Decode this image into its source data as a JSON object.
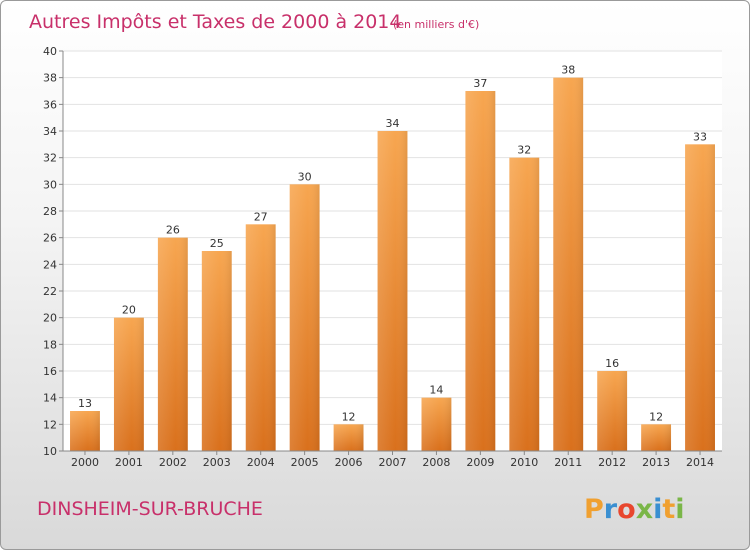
{
  "chart_data": {
    "type": "bar",
    "title": "Autres Impôts et Taxes de 2000 à 2014",
    "subtitle": "(en milliers d'€)",
    "categories": [
      "2000",
      "2001",
      "2002",
      "2003",
      "2004",
      "2005",
      "2006",
      "2007",
      "2008",
      "2009",
      "2010",
      "2011",
      "2012",
      "2013",
      "2014"
    ],
    "values": [
      13,
      20,
      26,
      25,
      27,
      30,
      12,
      34,
      14,
      37,
      32,
      38,
      16,
      12,
      33
    ],
    "ylim": [
      10,
      40
    ],
    "yticks": [
      "10",
      "12",
      "14",
      "16",
      "18",
      "20",
      "22",
      "24",
      "26",
      "28",
      "30",
      "32",
      "34",
      "36",
      "38",
      "40"
    ],
    "grid": true,
    "bar_color": "#f29a3f"
  },
  "footer": {
    "commune": "DINSHEIM-SUR-BRUCHE",
    "logo_text": "Proxiti"
  }
}
